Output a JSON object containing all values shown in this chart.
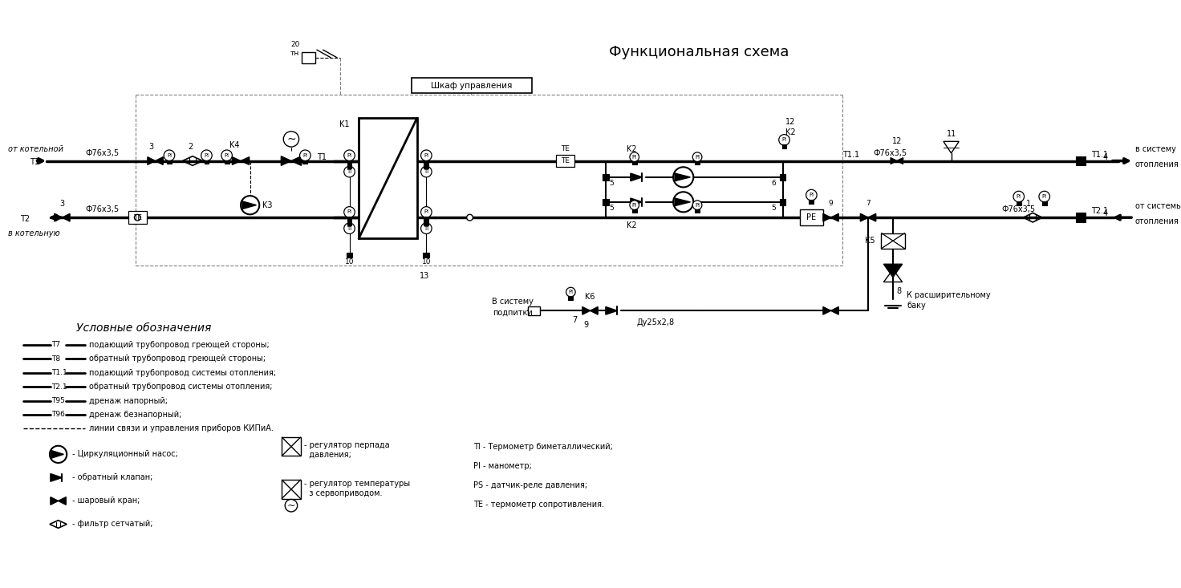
{
  "title": "Функциональная схема",
  "bg_color": "#ffffff",
  "fig_width": 14.72,
  "fig_height": 7.33,
  "legend_title": "Условные обозначения",
  "legend_lines": [
    [
      "T7",
      "подающий трубопровод греющей стороны;"
    ],
    [
      "T8",
      "обратный трубопровод греющей стороны;"
    ],
    [
      "T1.1",
      "подающий трубопровод системы отопления;"
    ],
    [
      "T2.1",
      "обратный трубопровод системы отопления;"
    ],
    [
      "T95",
      "дренаж напорный;"
    ],
    [
      "T96",
      "дренаж безнапорный;"
    ],
    [
      "---",
      "линии связи и управления приборов КИПиА."
    ]
  ],
  "legend_symbols": [
    "- Циркуляционный насос;",
    "- обратный клапан;",
    "- шаровый кран;",
    "- фильтр сетчатый;"
  ],
  "legend_right": [
    "- регулятор перпада\n  давления;",
    "- регулятор температуры\n  з сервоприводом."
  ],
  "legend_right2": [
    "TI - Термометр биметаллический;",
    "PI - манометр;",
    "PS - датчик-реле давления;",
    "TE - термометр сопротивления."
  ]
}
